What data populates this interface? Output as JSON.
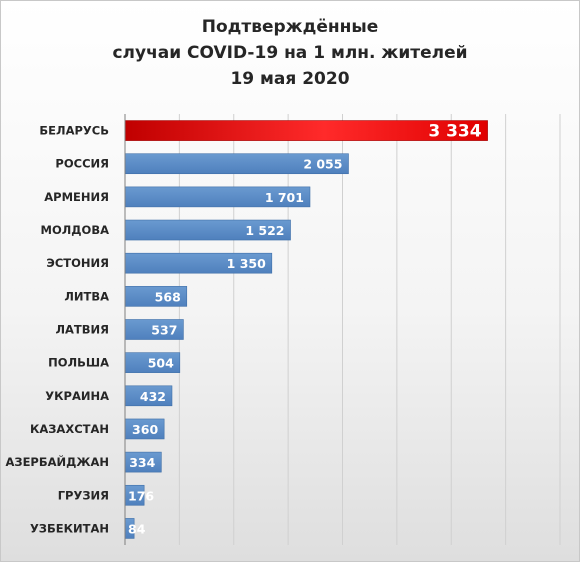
{
  "chart_data": {
    "type": "bar",
    "orientation": "horizontal",
    "title_lines": [
      "Подтверждённые",
      "случаи COVID-19 на 1 млн. жителей",
      "19 мая 2020"
    ],
    "categories": [
      "БЕЛАРУСЬ",
      "РОССИЯ",
      "АРМЕНИЯ",
      "МОЛДОВА",
      "ЭСТОНИЯ",
      "ЛИТВА",
      "ЛАТВИЯ",
      "ПОЛЬША",
      "УКРАИНА",
      "КАЗАХСТАН",
      "АЗЕРБАЙДЖАН",
      "ГРУЗИЯ",
      "УЗБЕКИТАН"
    ],
    "values": [
      3334,
      2055,
      1701,
      1522,
      1350,
      568,
      537,
      504,
      432,
      360,
      334,
      176,
      84
    ],
    "value_labels": [
      "3 334",
      "2 055",
      "1 701",
      "1 522",
      "1 350",
      "568",
      "537",
      "504",
      "432",
      "360",
      "334",
      "176",
      "84"
    ],
    "xlim": [
      0,
      4000
    ],
    "grid": true,
    "highlight_category": "БЕЛАРУСЬ",
    "colors": {
      "bar": "#5b8cc5",
      "bar_edge": "#3f6fa8",
      "highlight_dark": "#c00000",
      "highlight_light": "#ff3030",
      "grid": "#d0d0d0",
      "axis": "#7f7f7f"
    }
  }
}
